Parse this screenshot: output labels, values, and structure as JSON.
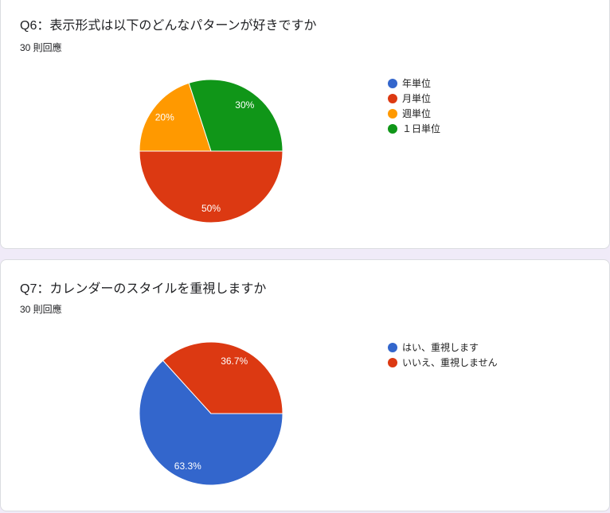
{
  "chart_data": [
    {
      "type": "pie",
      "title": "Q6：表示形式は以下のどんなパターンが好きですか",
      "responses": "30 則回應",
      "categories": [
        "年単位",
        "月単位",
        "週単位",
        "１日単位"
      ],
      "values": [
        0,
        50,
        20,
        30
      ],
      "labels": [
        "",
        "50%",
        "20%",
        "30%"
      ],
      "colors": [
        "#3366cc",
        "#dc3912",
        "#ff9900",
        "#109618"
      ],
      "legend": "right"
    },
    {
      "type": "pie",
      "title": "Q7：カレンダーのスタイルを重視しますか",
      "responses": "30 則回應",
      "categories": [
        "はい、重視します",
        "いいえ、重視しません"
      ],
      "values": [
        63.3,
        36.7
      ],
      "labels": [
        "63.3%",
        "36.7%"
      ],
      "colors": [
        "#3366cc",
        "#dc3912"
      ],
      "legend": "right"
    }
  ]
}
